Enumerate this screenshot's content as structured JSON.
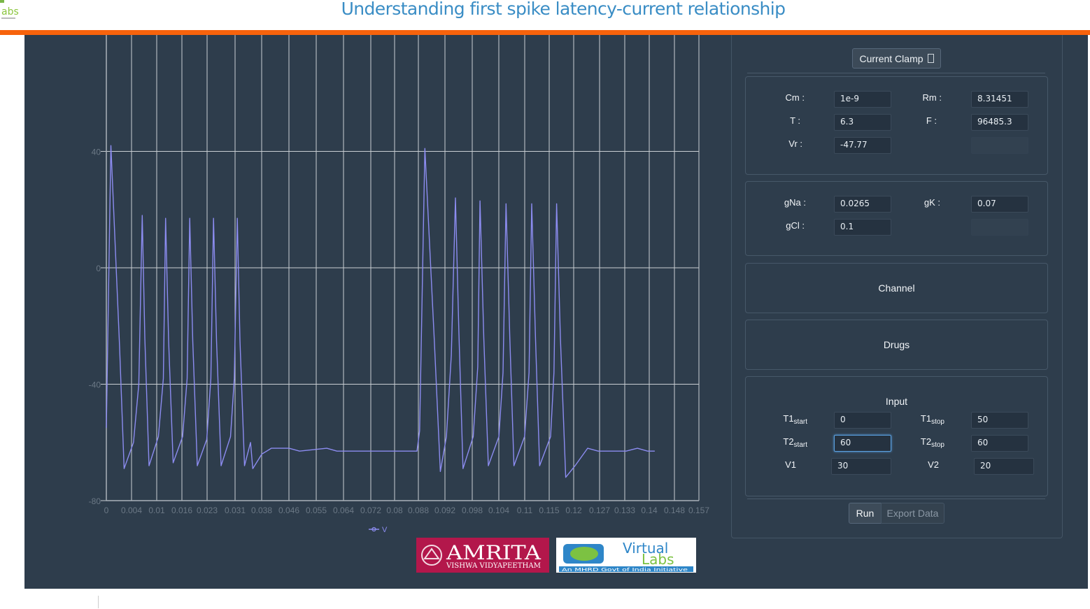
{
  "header": {
    "title": "Understanding first spike latency-current relationship"
  },
  "colors": {
    "accent_bar": "#f7630c",
    "title": "#3a8dc5",
    "panel": "#2e3d4c",
    "trace": "#8c8cf0"
  },
  "mode_select": {
    "label": "Current Clamp",
    "icon": "chevron-down-icon"
  },
  "params": {
    "cm_label": "Cm :",
    "cm": "1e-9",
    "rm_label": "Rm :",
    "rm": "8.31451",
    "t_label": "T :",
    "t": "6.3",
    "f_label": "F :",
    "f": "96485.3",
    "vr_label": "Vr :",
    "vr": "-47.77"
  },
  "conductances": {
    "gna_label": "gNa :",
    "gna": "0.0265",
    "gk_label": "gK :",
    "gk": "0.07",
    "gcl_label": "gCl :",
    "gcl": "0.1"
  },
  "sections": {
    "channel": "Channel",
    "drugs": "Drugs",
    "input": "Input"
  },
  "input": {
    "t1": "T1",
    "t2": "T2",
    "start": "start",
    "stop": "stop",
    "t1start": "0",
    "t1stop": "50",
    "t2start": "60",
    "t2stop": "60",
    "v1_label": "V1",
    "v1": "30",
    "v2_label": "V2",
    "v2": "20"
  },
  "buttons": {
    "run": "Run",
    "export": "Export Data"
  },
  "logos": {
    "amrita_main": "AMRITA",
    "amrita_sub": "VISHWA VIDYAPEETHAM",
    "vlabs_main1": "Virtual",
    "vlabs_main2": "Labs",
    "vlabs_sub": "An MHRD Govt of India Initiative"
  },
  "chart_data": {
    "type": "line",
    "title": "",
    "xlabel": "",
    "ylabel": "",
    "x_ticks": [
      "0",
      "0.004",
      "0.01",
      "0.016",
      "0.023",
      "0.031",
      "0.038",
      "0.046",
      "0.055",
      "0.064",
      "0.072",
      "0.08",
      "0.088",
      "0.092",
      "0.098",
      "0.104",
      "0.11",
      "0.115",
      "0.12",
      "0.127",
      "0.133",
      "0.14",
      "0.148",
      "0.157"
    ],
    "y_ticks": [
      "40",
      "0",
      "-40",
      "-80"
    ],
    "ylim": [
      -80,
      80
    ],
    "grid": true,
    "legend": "bottom-center",
    "series": [
      {
        "name": "V",
        "points": [
          [
            0,
            -55
          ],
          [
            0.0012,
            42
          ],
          [
            0.0035,
            -27
          ],
          [
            0.0047,
            -69
          ],
          [
            0.0072,
            -60
          ],
          [
            0.0086,
            -40
          ],
          [
            0.0095,
            18
          ],
          [
            0.0102,
            -24
          ],
          [
            0.0113,
            -68
          ],
          [
            0.0138,
            -58
          ],
          [
            0.0151,
            -38
          ],
          [
            0.0157,
            17
          ],
          [
            0.0165,
            -25
          ],
          [
            0.0177,
            -67
          ],
          [
            0.0202,
            -58
          ],
          [
            0.0214,
            -38
          ],
          [
            0.0221,
            17
          ],
          [
            0.0229,
            -25
          ],
          [
            0.0241,
            -68
          ],
          [
            0.0266,
            -59
          ],
          [
            0.0277,
            -38
          ],
          [
            0.0284,
            17
          ],
          [
            0.0292,
            -25
          ],
          [
            0.0304,
            -68
          ],
          [
            0.0329,
            -58
          ],
          [
            0.0339,
            -38
          ],
          [
            0.0347,
            17
          ],
          [
            0.0354,
            -25
          ],
          [
            0.0366,
            -68
          ],
          [
            0.0382,
            -60
          ],
          [
            0.0388,
            -69
          ],
          [
            0.0412,
            -64
          ],
          [
            0.0437,
            -62
          ],
          [
            0.0455,
            -62
          ],
          [
            0.0484,
            -62
          ],
          [
            0.0512,
            -63
          ],
          [
            0.0584,
            -62
          ],
          [
            0.0611,
            -63
          ],
          [
            0.0741,
            -63
          ],
          [
            0.0823,
            -63
          ],
          [
            0.083,
            -56
          ],
          [
            0.0844,
            41
          ],
          [
            0.0869,
            -25
          ],
          [
            0.0885,
            -70
          ],
          [
            0.0901,
            -58
          ],
          [
            0.0914,
            -30
          ],
          [
            0.0925,
            24
          ],
          [
            0.0934,
            -22
          ],
          [
            0.0945,
            -69
          ],
          [
            0.0972,
            -58
          ],
          [
            0.0984,
            -34
          ],
          [
            0.099,
            23
          ],
          [
            0.1,
            -24
          ],
          [
            0.1012,
            -68
          ],
          [
            0.104,
            -58
          ],
          [
            0.1051,
            -36
          ],
          [
            0.1059,
            22
          ],
          [
            0.1069,
            -24
          ],
          [
            0.108,
            -68
          ],
          [
            0.1108,
            -58
          ],
          [
            0.112,
            -36
          ],
          [
            0.1127,
            22
          ],
          [
            0.1137,
            -24
          ],
          [
            0.1148,
            -68
          ],
          [
            0.1177,
            -58
          ],
          [
            0.1186,
            -36
          ],
          [
            0.1193,
            22
          ],
          [
            0.1203,
            -24
          ],
          [
            0.1217,
            -72
          ],
          [
            0.1242,
            -68
          ],
          [
            0.1275,
            -62
          ],
          [
            0.1303,
            -63
          ],
          [
            0.1377,
            -63
          ],
          [
            0.1407,
            -62
          ],
          [
            0.1434,
            -63
          ],
          [
            0.1453,
            -63
          ]
        ]
      }
    ]
  }
}
